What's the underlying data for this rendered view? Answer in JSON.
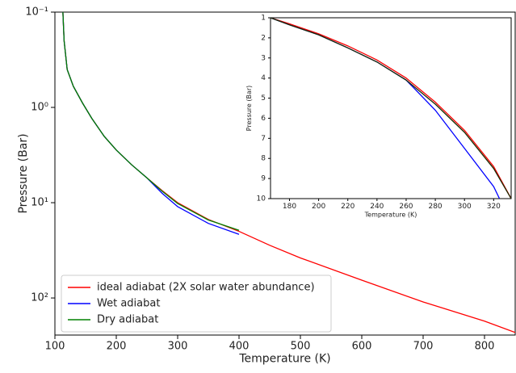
{
  "chart_data": [
    {
      "type": "line",
      "log_y": true,
      "x_label": "Temperature (K)",
      "y_label": "Pressure (Bar)",
      "xlim": [
        100,
        850
      ],
      "xticks": [
        100,
        200,
        300,
        400,
        500,
        600,
        700,
        800
      ],
      "ylim": [
        245,
        0.1
      ],
      "yticks": [
        {
          "value": 0.1,
          "label": "10⁻¹"
        },
        {
          "value": 1,
          "label": "10⁰"
        },
        {
          "value": 10,
          "label": "10¹"
        },
        {
          "value": 100,
          "label": "10²"
        }
      ],
      "legend": "lower left",
      "series": [
        {
          "name": "ideal adiabat (2X solar water abundance)",
          "color": "#ff0000",
          "x": [
            113,
            115,
            120,
            130,
            145,
            160,
            180,
            200,
            225,
            250,
            275,
            300,
            350,
            400,
            450,
            500,
            600,
            700,
            800,
            850
          ],
          "values": [
            0.1,
            0.2,
            0.4,
            0.6,
            0.9,
            1.3,
            2.0,
            2.8,
            4.0,
            5.5,
            7.5,
            10,
            15,
            20,
            28,
            38,
            65,
            110,
            175,
            230
          ]
        },
        {
          "name": "Wet adiabat",
          "color": "#0000ff",
          "x": [
            113,
            115,
            120,
            130,
            145,
            160,
            180,
            200,
            225,
            250,
            275,
            300,
            350,
            400
          ],
          "values": [
            0.1,
            0.2,
            0.4,
            0.6,
            0.9,
            1.3,
            2.0,
            2.8,
            4.0,
            5.5,
            8.0,
            11,
            16.5,
            21.5
          ]
        },
        {
          "name": "Dry adiabat",
          "color": "#008000",
          "x": [
            113,
            115,
            120,
            130,
            145,
            160,
            180,
            200,
            225,
            250,
            275,
            300,
            350,
            400
          ],
          "values": [
            0.1,
            0.2,
            0.4,
            0.6,
            0.9,
            1.3,
            2.0,
            2.8,
            4.0,
            5.5,
            7.6,
            10.2,
            15.2,
            19.5
          ]
        }
      ]
    },
    {
      "type": "line",
      "log_y": false,
      "x_label": "Temperature (K)",
      "y_label": "Pressure (Bar)",
      "xlim": [
        167,
        332
      ],
      "xticks": [
        180,
        200,
        220,
        240,
        260,
        280,
        300,
        320
      ],
      "ylim": [
        10,
        1
      ],
      "yticks": [
        1,
        2,
        3,
        4,
        5,
        6,
        7,
        8,
        9,
        10
      ],
      "series": [
        {
          "color": "#ff0000",
          "x": [
            167,
            180,
            200,
            220,
            240,
            260,
            280,
            300,
            320,
            332
          ],
          "values": [
            1,
            1.3,
            1.8,
            2.4,
            3.1,
            4.0,
            5.2,
            6.6,
            8.4,
            10
          ]
        },
        {
          "color": "#0000ff",
          "x": [
            167,
            180,
            200,
            220,
            240,
            260,
            280,
            300,
            320,
            324
          ],
          "values": [
            1,
            1.35,
            1.85,
            2.5,
            3.2,
            4.1,
            5.6,
            7.5,
            9.4,
            10
          ]
        },
        {
          "color": "#1a2a00",
          "x": [
            167,
            180,
            200,
            220,
            240,
            260,
            280,
            300,
            320,
            332
          ],
          "values": [
            1,
            1.35,
            1.85,
            2.5,
            3.2,
            4.1,
            5.3,
            6.7,
            8.5,
            10
          ]
        }
      ]
    }
  ]
}
